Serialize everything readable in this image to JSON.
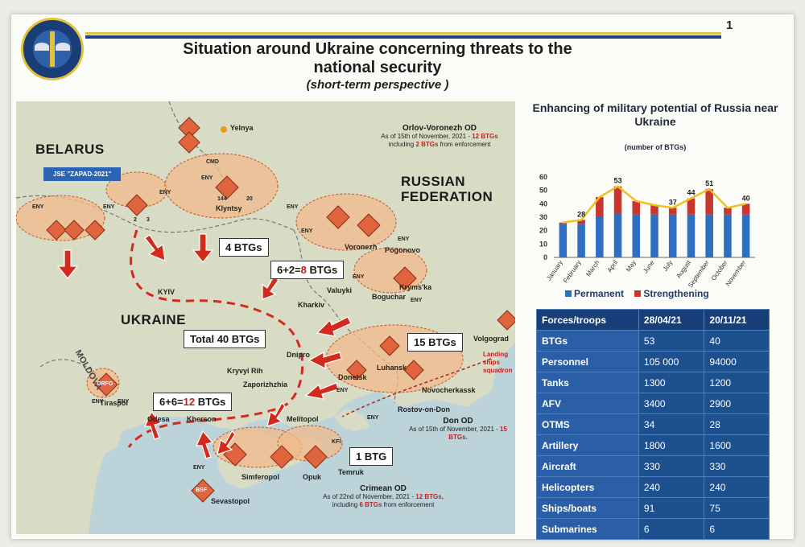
{
  "page_number": "1",
  "title": "Situation around Ukraine concerning threats to the national security",
  "subtitle": "(short-term perspective )",
  "map": {
    "countries": [
      "BELARUS",
      "RUSSIAN FEDERATION",
      "UKRAINE",
      "MOLDOVA"
    ],
    "jse_label": "JSE \"ZAPAD-2021\"",
    "cities": [
      "Yelnya",
      "Klyntsy",
      "KYIV",
      "Voronezh",
      "Pogonovo",
      "Valuyki",
      "Boguchar",
      "Kharkiv",
      "Dnipro",
      "Kryvyi Rih",
      "Zaporizhzhia",
      "Luhansk",
      "Donetsk",
      "Volgograd",
      "Novocherkassk",
      "Rostov-on-Don",
      "Tiraspol",
      "Odesa",
      "Kherson",
      "Melitopol",
      "Simferopol",
      "Sevastopol",
      "Temruk",
      "Kryms'ka",
      "Opuk"
    ],
    "eny_label": "ENY",
    "unit_codes": [
      "CMD",
      "144",
      "20",
      "2",
      "3",
      "BSF",
      "ORFO",
      "KFI"
    ],
    "btg_boxes": {
      "north": "4 BTGs",
      "northeast": {
        "prefix": "6+2=",
        "value": "8",
        "suffix": " BTGs"
      },
      "total": "Total 40 BTGs",
      "east": "15 BTGs",
      "south": {
        "prefix": "6+6=",
        "value": "12",
        "suffix": " BTGs"
      },
      "crimea": "1 BTG"
    },
    "ods": [
      {
        "name": "Orlov-Voronezh OD",
        "note_pre": "As of 15th of November, 2021 - ",
        "note_val": "12 BTGs",
        "note2_pre": "including ",
        "note2_val": "2 BTGs",
        "note2_post": " from enforcement"
      },
      {
        "name": "Don OD",
        "note_pre": "As of 15th of November, 2021 - ",
        "note_val": "15 BTGs."
      },
      {
        "name": "Crimean OD",
        "note_pre": "As of 22nd of November, 2021 - ",
        "note_val": "12 BTGs,",
        "note2_pre": "including ",
        "note2_val": "6 BTGs",
        "note2_post": " from enforcement"
      }
    ],
    "landing_label": "Landing ships squadron",
    "colors": {
      "sea": "#bcd3da",
      "land": "#d9dcc5",
      "zone": "#f0b98a",
      "arrow": "#d32a1f"
    }
  },
  "chart": {
    "title": "Enhancing of military potential of Russia near Ukraine",
    "unit": "(number of BTGs)",
    "legend": {
      "permanent": "Permanent",
      "strengthening": "Strengthening"
    }
  },
  "chart_data": {
    "type": "bar",
    "categories": [
      "January",
      "February",
      "March",
      "April",
      "May",
      "June",
      "July",
      "August",
      "September",
      "October",
      "November"
    ],
    "series": [
      {
        "name": "Permanent",
        "values": [
          25,
          25,
          30,
          33,
          32,
          32,
          32,
          32,
          32,
          32,
          32
        ],
        "color": "#2f6fc2"
      },
      {
        "name": "Strengthening",
        "values": [
          1,
          3,
          15,
          20,
          10,
          7,
          5,
          12,
          19,
          5,
          8
        ],
        "color": "#c8372d"
      }
    ],
    "totals_labels": [
      {
        "index": 1,
        "text": "28"
      },
      {
        "index": 3,
        "text": "53"
      },
      {
        "index": 6,
        "text": "37"
      },
      {
        "index": 7,
        "text": "44"
      },
      {
        "index": 8,
        "text": "51"
      },
      {
        "index": 10,
        "text": "40"
      }
    ],
    "trend_line_color": "#f0c020",
    "yticks": [
      0,
      10,
      20,
      30,
      40,
      50,
      60
    ],
    "ylim": [
      0,
      60
    ],
    "grid": false,
    "legend_position": "bottom"
  },
  "table": {
    "headers": [
      "Forces/troops",
      "28/04/21",
      "20/11/21"
    ],
    "rows": [
      [
        "BTGs",
        "53",
        "40"
      ],
      [
        "Personnel",
        "105 000",
        "94000"
      ],
      [
        "Tanks",
        "1300",
        "1200"
      ],
      [
        "AFV",
        "3400",
        "2900"
      ],
      [
        "OTMS",
        "34",
        "28"
      ],
      [
        "Artillery",
        "1800",
        "1600"
      ],
      [
        "Aircraft",
        "330",
        "330"
      ],
      [
        "Helicopters",
        "240",
        "240"
      ],
      [
        "Ships/boats",
        "91",
        "75"
      ],
      [
        "Submarines",
        "6",
        "6"
      ]
    ]
  }
}
